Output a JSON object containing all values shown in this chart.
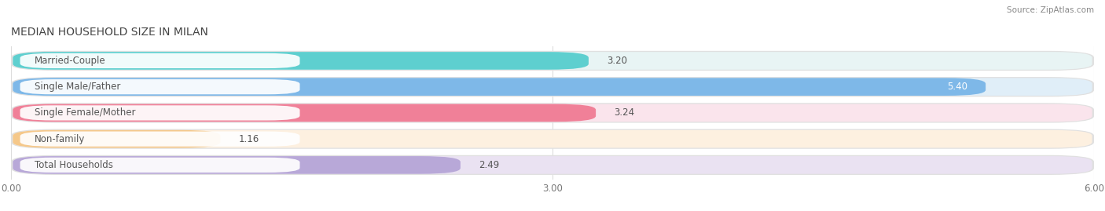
{
  "title": "MEDIAN HOUSEHOLD SIZE IN MILAN",
  "source": "Source: ZipAtlas.com",
  "categories": [
    "Married-Couple",
    "Single Male/Father",
    "Single Female/Mother",
    "Non-family",
    "Total Households"
  ],
  "values": [
    3.2,
    5.4,
    3.24,
    1.16,
    2.49
  ],
  "bar_colors": [
    "#5ECFCF",
    "#7EB8E8",
    "#F08098",
    "#F5C88A",
    "#B8A8D8"
  ],
  "bar_bg_colors": [
    "#E8F4F4",
    "#E0EEF8",
    "#FAE4EC",
    "#FDF0E0",
    "#EAE2F2"
  ],
  "label_bg_colors": [
    "#E8F4F4",
    "#E0EEF8",
    "#FAE4EC",
    "#FDF0E0",
    "#EAE2F2"
  ],
  "xlim": [
    0,
    6.0
  ],
  "xticks": [
    0.0,
    3.0,
    6.0
  ],
  "xtick_labels": [
    "0.00",
    "3.00",
    "6.00"
  ],
  "title_fontsize": 10,
  "label_fontsize": 8.5,
  "value_fontsize": 8.5,
  "background_color": "#ffffff"
}
